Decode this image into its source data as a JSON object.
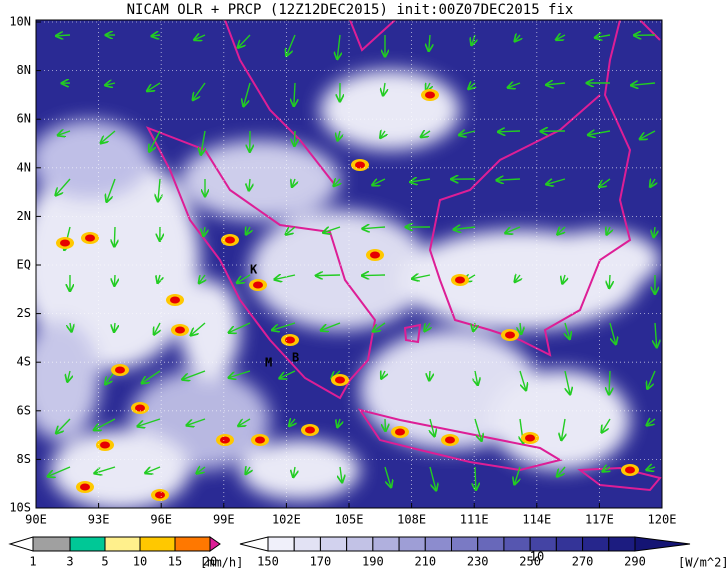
{
  "title": "NICAM OLR + PRCP (12Z12DEC2015) init:00Z07DEC2015 fix",
  "lat_labels": [
    "10N",
    "8N",
    "6N",
    "4N",
    "2N",
    "EQ",
    "2S",
    "4S",
    "6S",
    "8S",
    "10S"
  ],
  "lon_labels": [
    "90E",
    "93E",
    "96E",
    "99E",
    "102E",
    "105E",
    "108E",
    "111E",
    "114E",
    "117E",
    "120E"
  ],
  "place_labels": [
    "K",
    "M",
    "B"
  ],
  "precip_legend": {
    "labels": [
      "1",
      "3",
      "5",
      "10",
      "15",
      "20"
    ],
    "unit": "[mm/h]",
    "colors": [
      "#ffffff",
      "#a0a0a0",
      "#00c896",
      "#fff08c",
      "#ffc800",
      "#ff7800",
      "#e60000",
      "#dc1e96"
    ]
  },
  "olr_legend": {
    "labels": [
      "150",
      "170",
      "190",
      "210",
      "230",
      "250",
      "270",
      "290"
    ],
    "unit": "[W/m^2]",
    "colors": [
      "#ffffff",
      "#f0f0fa",
      "#e2e2f4",
      "#d2d2ee",
      "#c2c2e6",
      "#b0b0de",
      "#9e9ed6",
      "#8c8cce",
      "#7a7ac4",
      "#6868ba",
      "#5656b0",
      "#4444a4",
      "#343498",
      "#26268c",
      "#1c1c80",
      "#141474"
    ]
  },
  "vector_reference": "10"
}
